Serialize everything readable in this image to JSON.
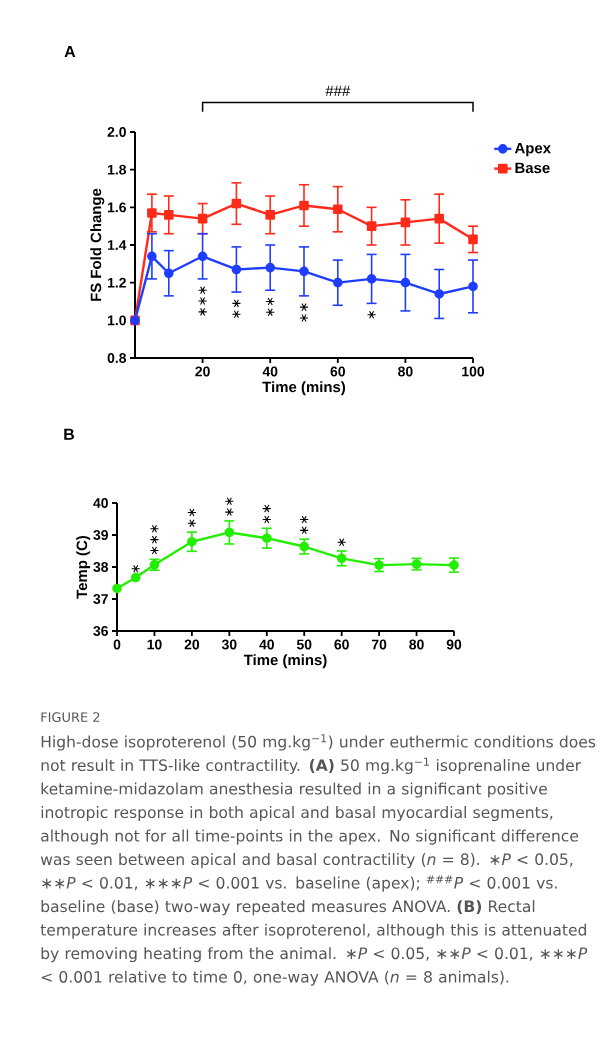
{
  "chart_data": [
    {
      "type": "line",
      "title": "A",
      "xlabel": "Time (mins)",
      "ylabel": "FS Fold Change",
      "x": [
        0,
        5,
        10,
        20,
        30,
        40,
        50,
        60,
        70,
        80,
        90,
        100
      ],
      "series": [
        {
          "name": "Apex",
          "color": "#1f3dff",
          "marker": "circle",
          "values": [
            1.0,
            1.34,
            1.25,
            1.34,
            1.27,
            1.28,
            1.26,
            1.2,
            1.22,
            1.2,
            1.14,
            1.18
          ],
          "errors": [
            null,
            0.12,
            0.12,
            0.12,
            0.12,
            0.12,
            0.13,
            0.12,
            0.13,
            0.15,
            0.13,
            0.14
          ],
          "value_labels": [
            null,
            null,
            null,
            "∗∗∗",
            "∗∗",
            "∗∗",
            "∗∗",
            null,
            "∗",
            null,
            null,
            null
          ]
        },
        {
          "name": "Base",
          "color": "#ff2a1a",
          "marker": "square",
          "values": [
            1.0,
            1.57,
            1.56,
            1.54,
            1.62,
            1.56,
            1.61,
            1.59,
            1.5,
            1.52,
            1.54,
            1.43
          ],
          "errors": [
            null,
            0.1,
            0.1,
            0.08,
            0.11,
            0.1,
            0.11,
            0.12,
            0.1,
            0.12,
            0.13,
            0.07
          ]
        }
      ],
      "xlim": [
        0,
        100
      ],
      "xticks": [
        20,
        40,
        60,
        80,
        100
      ],
      "ylim": [
        0.8,
        2.0
      ],
      "yticks": [
        0.8,
        {
          "value": 1,
          "label": "1.0"
        },
        1.2,
        1.4,
        1.6,
        1.8,
        {
          "value": 2,
          "label": "2.0"
        }
      ],
      "legend": "right",
      "annotations": [
        "###"
      ]
    },
    {
      "type": "line",
      "title": "B",
      "xlabel": "Time (mins)",
      "ylabel": "Temp (C)",
      "x": [
        0,
        5,
        10,
        20,
        30,
        40,
        50,
        60,
        70,
        80,
        90
      ],
      "color": "#22ee00",
      "marker": "circle",
      "values": [
        37.33,
        37.67,
        38.07,
        38.79,
        39.08,
        38.9,
        38.64,
        38.27,
        38.06,
        38.09,
        38.06
      ],
      "errors": [
        null,
        null,
        0.17,
        0.3,
        0.36,
        0.31,
        0.23,
        0.23,
        0.2,
        0.18,
        0.22
      ],
      "value_labels": [
        null,
        "∗",
        "∗∗∗",
        "∗∗",
        "∗∗",
        "∗∗",
        "∗∗",
        "∗",
        null,
        null,
        null
      ],
      "xlim": [
        0,
        90
      ],
      "xticks": [
        0,
        10,
        20,
        30,
        40,
        50,
        60,
        70,
        80,
        90
      ],
      "ylim": [
        36,
        40
      ],
      "yticks": [
        36,
        37,
        38,
        39,
        40
      ],
      "annotations": [
        "FIGURE 2",
        "High-dose isoproterenol (50 mg.kg$^{−1}$) under euthermic conditions does not result in TTS-like contractility. **(A)** 50 mg.kg$^{−1}$ isoprenaline under ketamine-midazolam anesthesia resulted in a significant positive inotropic response in both apical and basal myocardial segments, although not for all time-points in the apex. No significant difference was seen between apical and basal contractility (*n* = 8). ∗*P* < 0.05, ∗∗*P* < 0.01, ∗∗∗*P* < 0.001 vs. baseline (apex); $^{###}$*P* < 0.001 vs. baseline (base) two-way repeated measures ANOVA. **(B)** Rectal temperature increases after isoproterenol, although this is attenuated by removing heating from the animal. ∗*P* < 0.05, ∗∗*P* < 0.01, ∗∗∗*P* < 0.001 relative to time 0, one-way ANOVA (*n* = 8 animals)."
      ]
    }
  ]
}
